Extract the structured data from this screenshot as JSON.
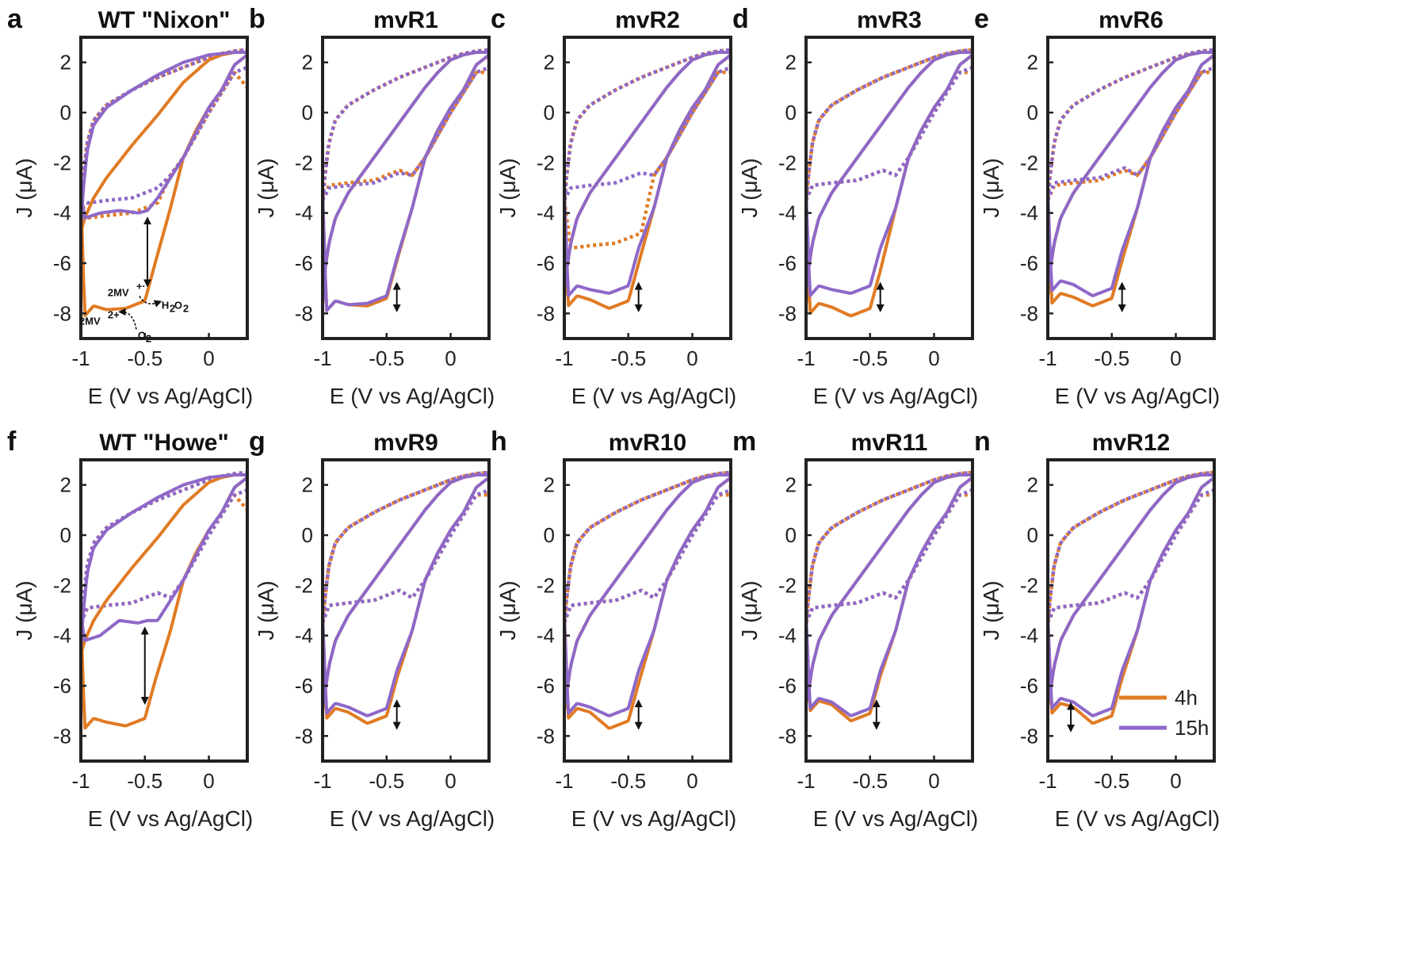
{
  "chart_data": {
    "type": "line",
    "panels": [
      {
        "letter": "a",
        "title": "WT \"Nixon\"",
        "style": "wt",
        "d4": -7.8,
        "d15": -4.2,
        "p4": -7.8,
        "p15": -4.1,
        "bad4": -4.2,
        "bad15": -3.6,
        "r4": 1.0,
        "r15": 1.8
      },
      {
        "letter": "b",
        "title": "mvR1",
        "style": "mut",
        "d4": -7.6,
        "d15": -7.6,
        "p4": -7.7,
        "p15": -7.6,
        "bad4": -2.9,
        "bad15": -3.0,
        "r4": 1.6,
        "r15": 1.8
      },
      {
        "letter": "c",
        "title": "mvR2",
        "style": "mut",
        "d4": -7.4,
        "d15": -7.0,
        "p4": -7.8,
        "p15": -7.2,
        "bad4": -5.4,
        "bad15": -3.0,
        "r4": 1.6,
        "r15": 1.8
      },
      {
        "letter": "d",
        "title": "mvR3",
        "style": "mut",
        "d4": -7.7,
        "d15": -7.0,
        "p4": -8.1,
        "p15": -7.2,
        "bad4": -2.9,
        "bad15": -2.9,
        "r4": 1.6,
        "r15": 1.8
      },
      {
        "letter": "e",
        "title": "mvR6",
        "style": "mut",
        "d4": -7.3,
        "d15": -6.8,
        "p4": -7.7,
        "p15": -7.3,
        "bad4": -2.9,
        "bad15": -2.8,
        "r4": 1.6,
        "r15": 1.8
      },
      {
        "letter": "f",
        "title": "WT \"Howe\"",
        "style": "wt",
        "d4": -7.4,
        "d15": -4.2,
        "p4": -7.6,
        "p15": -3.6,
        "bad4": -2.9,
        "bad15": -2.9,
        "r4": 1.0,
        "r15": 1.8
      },
      {
        "letter": "g",
        "title": "mvR9",
        "style": "mut",
        "d4": -7.0,
        "d15": -6.8,
        "p4": -7.5,
        "p15": -7.2,
        "bad4": -2.8,
        "bad15": -2.8,
        "r4": 1.6,
        "r15": 1.8
      },
      {
        "letter": "h",
        "title": "mvR10",
        "style": "mut",
        "d4": -7.0,
        "d15": -6.8,
        "p4": -7.7,
        "p15": -7.2,
        "bad4": -2.8,
        "bad15": -2.8,
        "r4": 1.6,
        "r15": 1.8
      },
      {
        "letter": "m",
        "title": "mvR11",
        "style": "mut",
        "d4": -6.7,
        "d15": -6.6,
        "p4": -7.4,
        "p15": -7.2,
        "bad4": -2.9,
        "bad15": -2.9,
        "r4": 1.6,
        "r15": 1.8
      },
      {
        "letter": "n",
        "title": "mvR12",
        "style": "mut",
        "d4": -6.8,
        "d15": -6.6,
        "p4": -7.5,
        "p15": -7.2,
        "bad4": -2.9,
        "bad15": -2.9,
        "r4": 1.6,
        "r15": 1.8
      }
    ],
    "xlabel": "E (V vs Ag/AgCl)",
    "ylabel": "J (μA)",
    "xlim": [
      -1.0,
      0.3
    ],
    "ylim": [
      -9,
      3
    ],
    "xticks": [
      -1,
      -0.5,
      0
    ],
    "xtick_labels": [
      "-1",
      "-0.5",
      "0"
    ],
    "yticks": [
      2,
      0,
      -2,
      -4,
      -6,
      -8
    ],
    "ytick_labels": [
      "2",
      "0",
      "-2",
      "-4",
      "-6",
      "-8"
    ],
    "series": [
      {
        "name": "4h",
        "color": "#E07B24"
      },
      {
        "name": "15h",
        "color": "#8E68C8"
      }
    ],
    "legend_position": "bottom-right",
    "annotations": {
      "scheme": [
        "2MV",
        "+·",
        "H",
        "2",
        "O",
        "2",
        "2MV",
        "2+",
        "O",
        "2"
      ]
    },
    "arrows": [
      {
        "panel": 0,
        "x": -0.48,
        "y1": -4.3,
        "y2": -6.8
      },
      {
        "panel": 1,
        "x": -0.42,
        "y1": -6.9,
        "y2": -7.8
      },
      {
        "panel": 2,
        "x": -0.42,
        "y1": -6.9,
        "y2": -7.8
      },
      {
        "panel": 3,
        "x": -0.42,
        "y1": -6.9,
        "y2": -7.8
      },
      {
        "panel": 4,
        "x": -0.42,
        "y1": -6.9,
        "y2": -7.8
      },
      {
        "panel": 5,
        "x": -0.5,
        "y1": -3.8,
        "y2": -6.6
      },
      {
        "panel": 6,
        "x": -0.42,
        "y1": -6.7,
        "y2": -7.6
      },
      {
        "panel": 7,
        "x": -0.42,
        "y1": -6.7,
        "y2": -7.6
      },
      {
        "panel": 8,
        "x": -0.45,
        "y1": -6.7,
        "y2": -7.6
      },
      {
        "panel": 9,
        "x": -0.82,
        "y1": -6.8,
        "y2": -7.7
      }
    ]
  }
}
